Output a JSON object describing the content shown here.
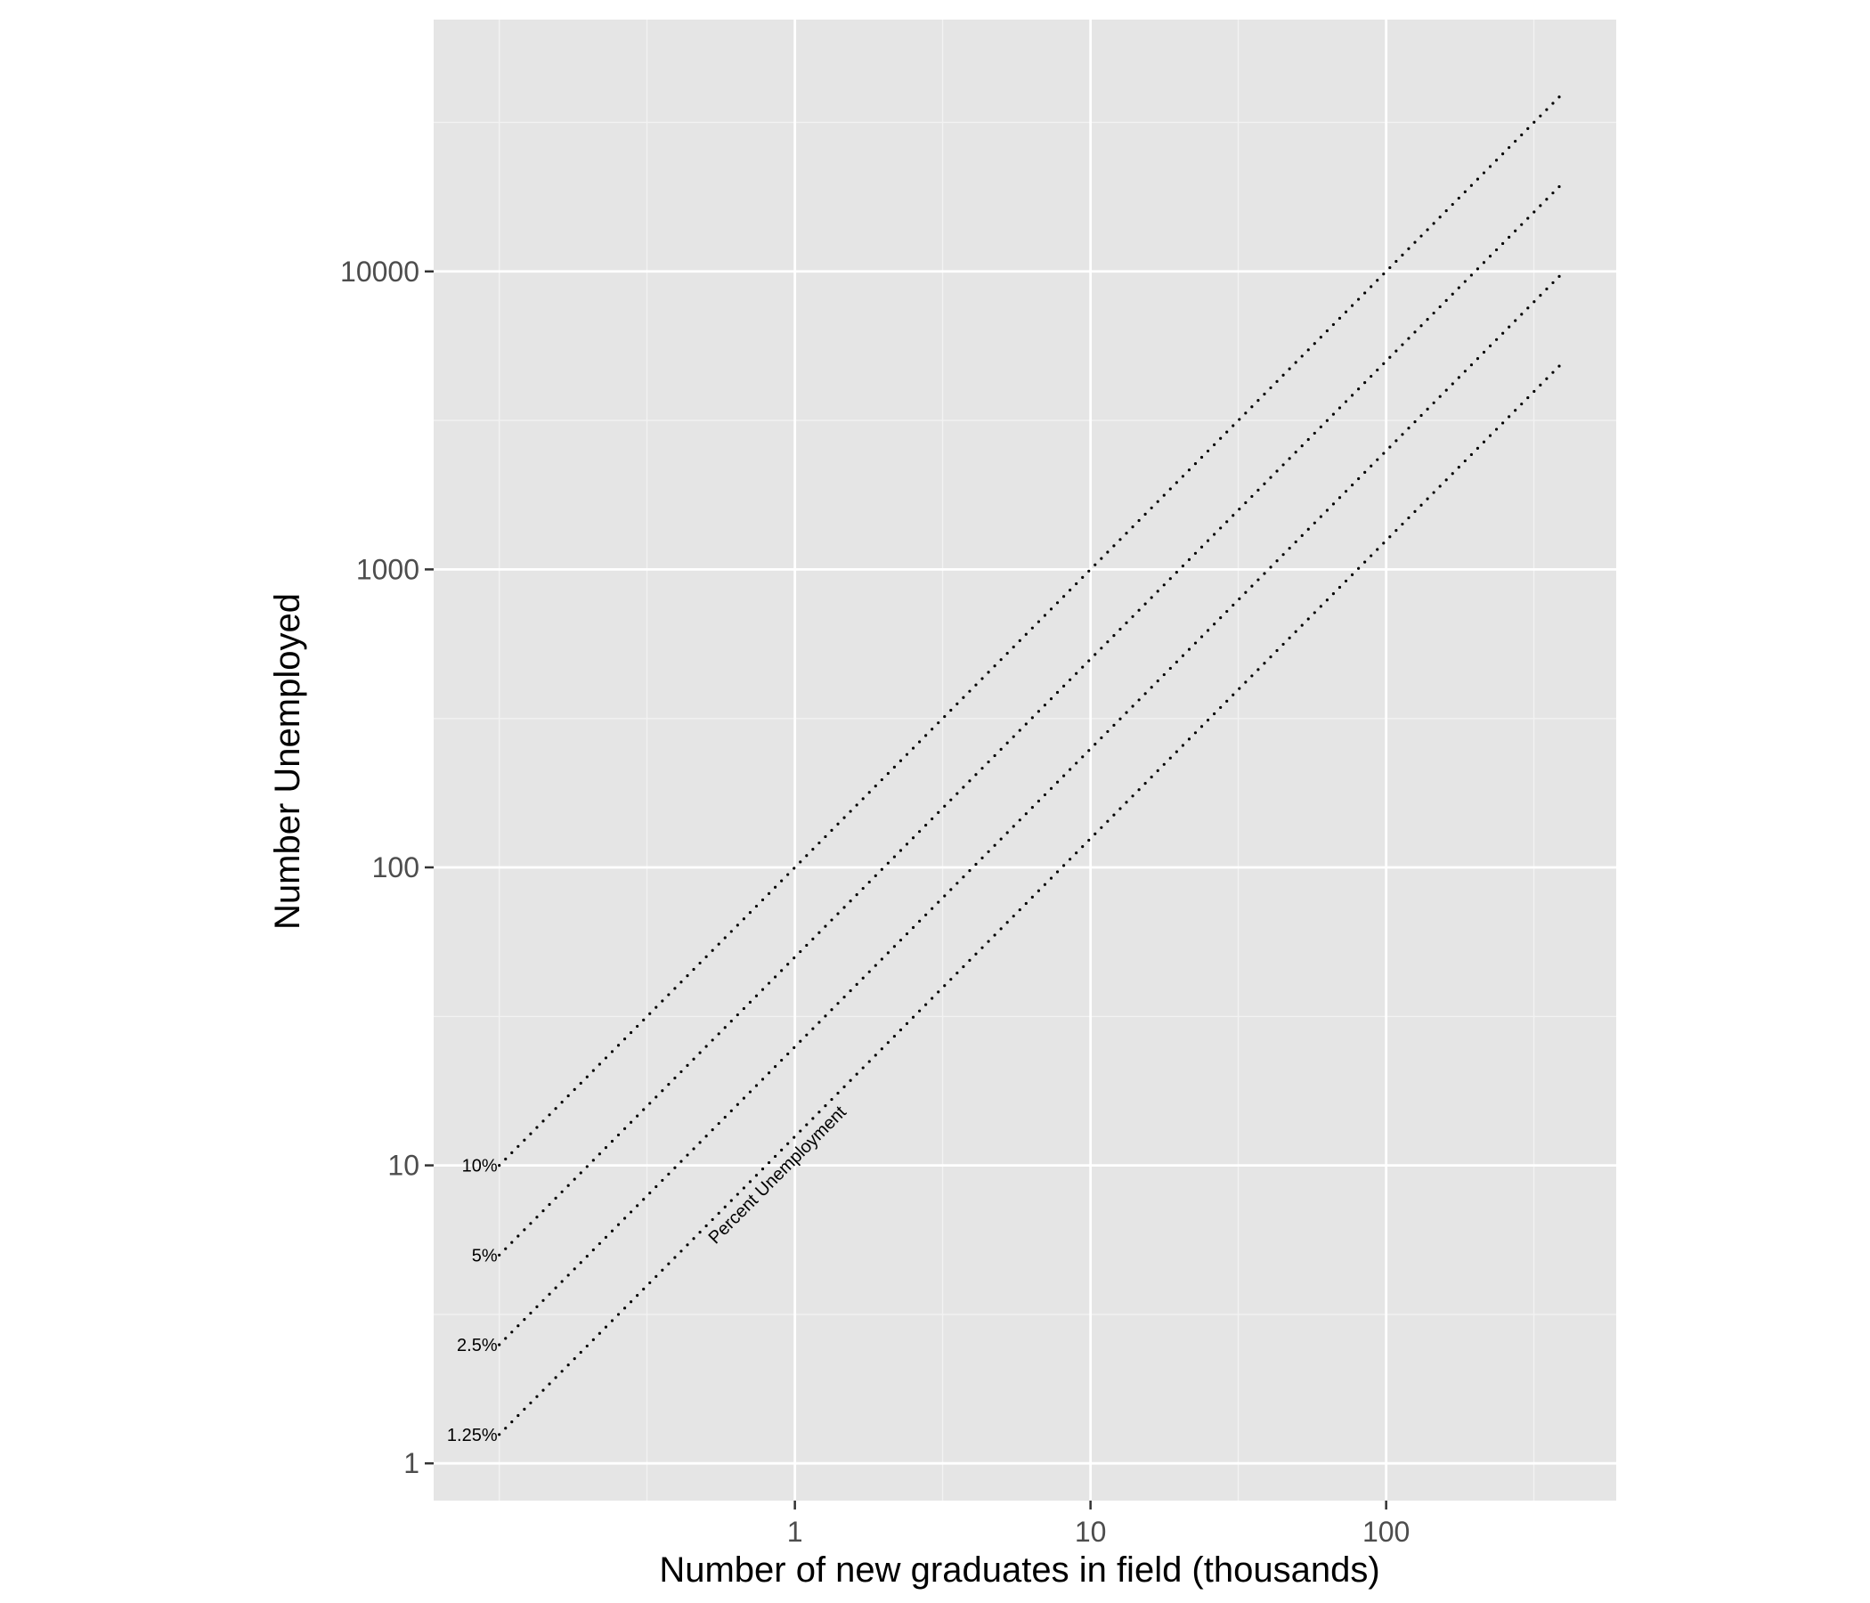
{
  "chart_data": {
    "type": "line",
    "xlabel": "Number of new graduates in field (thousands)",
    "ylabel": "Number Unemployed",
    "x_scale": "log10",
    "y_scale": "log10",
    "xlim": [
      0.06,
      600
    ],
    "ylim": [
      0.75,
      70000
    ],
    "x_ticks": [
      {
        "value": 1,
        "label": "1"
      },
      {
        "value": 10,
        "label": "10"
      },
      {
        "value": 100,
        "label": "100"
      }
    ],
    "y_ticks": [
      {
        "value": 1,
        "label": "1"
      },
      {
        "value": 10,
        "label": "10"
      },
      {
        "value": 100,
        "label": "100"
      },
      {
        "value": 1000,
        "label": "1000"
      },
      {
        "value": 10000,
        "label": "10000"
      }
    ],
    "x_minor_grid": [
      0.1,
      0.316,
      3.16,
      31.6,
      316
    ],
    "y_minor_grid": [
      3.16,
      31.6,
      316,
      3162,
      31623
    ],
    "grid": true,
    "legend": "none",
    "line_style": "dotted",
    "series": [
      {
        "name": "10%",
        "rate": 0.1,
        "x": [
          0.1,
          400
        ],
        "y": [
          10,
          40000
        ]
      },
      {
        "name": "5%",
        "rate": 0.05,
        "x": [
          0.1,
          400
        ],
        "y": [
          5,
          20000
        ]
      },
      {
        "name": "2.5%",
        "rate": 0.025,
        "x": [
          0.1,
          400
        ],
        "y": [
          2.5,
          10000
        ]
      },
      {
        "name": "1.25%",
        "rate": 0.0125,
        "x": [
          0.1,
          400
        ],
        "y": [
          1.25,
          5000
        ]
      }
    ],
    "annotation": {
      "text": "Percent Unemployment",
      "x": 0.9,
      "y": 9,
      "angle": -45
    },
    "colors": {
      "panel_background": "#e5e5e5",
      "grid_major": "#ffffff",
      "grid_minor": "#f2f2f2",
      "line": "#000000",
      "tick_text": "#4d4d4d",
      "axis_title": "#000000"
    }
  }
}
